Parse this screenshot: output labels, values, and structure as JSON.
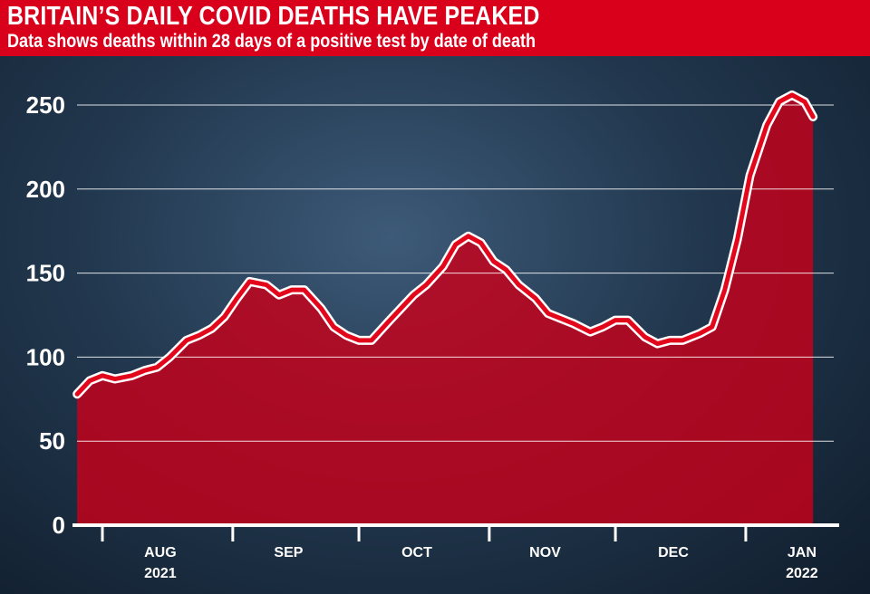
{
  "header": {
    "title": "BRITAIN’S DAILY COVID DEATHS HAVE PEAKED",
    "subtitle": "Data shows deaths within 28 days of a positive test by date of death"
  },
  "colors": {
    "banner": "#d9001b",
    "line": "#e3071b",
    "area": "#c8001a",
    "background": "#22384f"
  },
  "chart_data": {
    "type": "area",
    "title": "BRITAIN’S DAILY COVID DEATHS HAVE PEAKED",
    "subtitle": "Data shows deaths within 28 days of a positive test by date of death",
    "xlabel": "",
    "ylabel": "",
    "ylim": [
      0,
      260
    ],
    "yticks": [
      0,
      50,
      100,
      150,
      200,
      250
    ],
    "grid": "horizontal",
    "xticks": [
      {
        "date": "2021-08-01",
        "label": "AUG",
        "sublabel": "2021"
      },
      {
        "date": "2021-09-01",
        "label": "SEP",
        "sublabel": ""
      },
      {
        "date": "2021-10-01",
        "label": "OCT",
        "sublabel": ""
      },
      {
        "date": "2021-11-01",
        "label": "NOV",
        "sublabel": ""
      },
      {
        "date": "2021-12-01",
        "label": "DEC",
        "sublabel": ""
      },
      {
        "date": "2022-01-01",
        "label": "JAN",
        "sublabel": "2022"
      }
    ],
    "x": [
      "2021-07-26",
      "2021-07-29",
      "2021-08-01",
      "2021-08-04",
      "2021-08-08",
      "2021-08-11",
      "2021-08-14",
      "2021-08-17",
      "2021-08-21",
      "2021-08-24",
      "2021-08-27",
      "2021-08-30",
      "2021-09-02",
      "2021-09-05",
      "2021-09-09",
      "2021-09-12",
      "2021-09-15",
      "2021-09-18",
      "2021-09-22",
      "2021-09-25",
      "2021-09-28",
      "2021-10-01",
      "2021-10-04",
      "2021-10-08",
      "2021-10-11",
      "2021-10-14",
      "2021-10-17",
      "2021-10-21",
      "2021-10-24",
      "2021-10-27",
      "2021-10-30",
      "2021-11-02",
      "2021-11-05",
      "2021-11-08",
      "2021-11-12",
      "2021-11-15",
      "2021-11-18",
      "2021-11-21",
      "2021-11-25",
      "2021-11-28",
      "2021-12-01",
      "2021-12-04",
      "2021-12-08",
      "2021-12-11",
      "2021-12-14",
      "2021-12-17",
      "2021-12-21",
      "2021-12-24",
      "2021-12-27",
      "2021-12-30",
      "2022-01-02",
      "2022-01-06",
      "2022-01-09",
      "2022-01-12",
      "2022-01-15",
      "2022-01-17"
    ],
    "values": [
      78,
      86,
      89,
      87,
      89,
      92,
      94,
      100,
      110,
      113,
      117,
      124,
      135,
      145,
      143,
      137,
      140,
      140,
      129,
      118,
      113,
      110,
      110,
      121,
      129,
      137,
      143,
      154,
      167,
      172,
      168,
      157,
      152,
      143,
      135,
      126,
      123,
      120,
      115,
      118,
      122,
      122,
      112,
      108,
      110,
      110,
      114,
      118,
      140,
      170,
      208,
      238,
      252,
      256,
      252,
      243
    ]
  }
}
